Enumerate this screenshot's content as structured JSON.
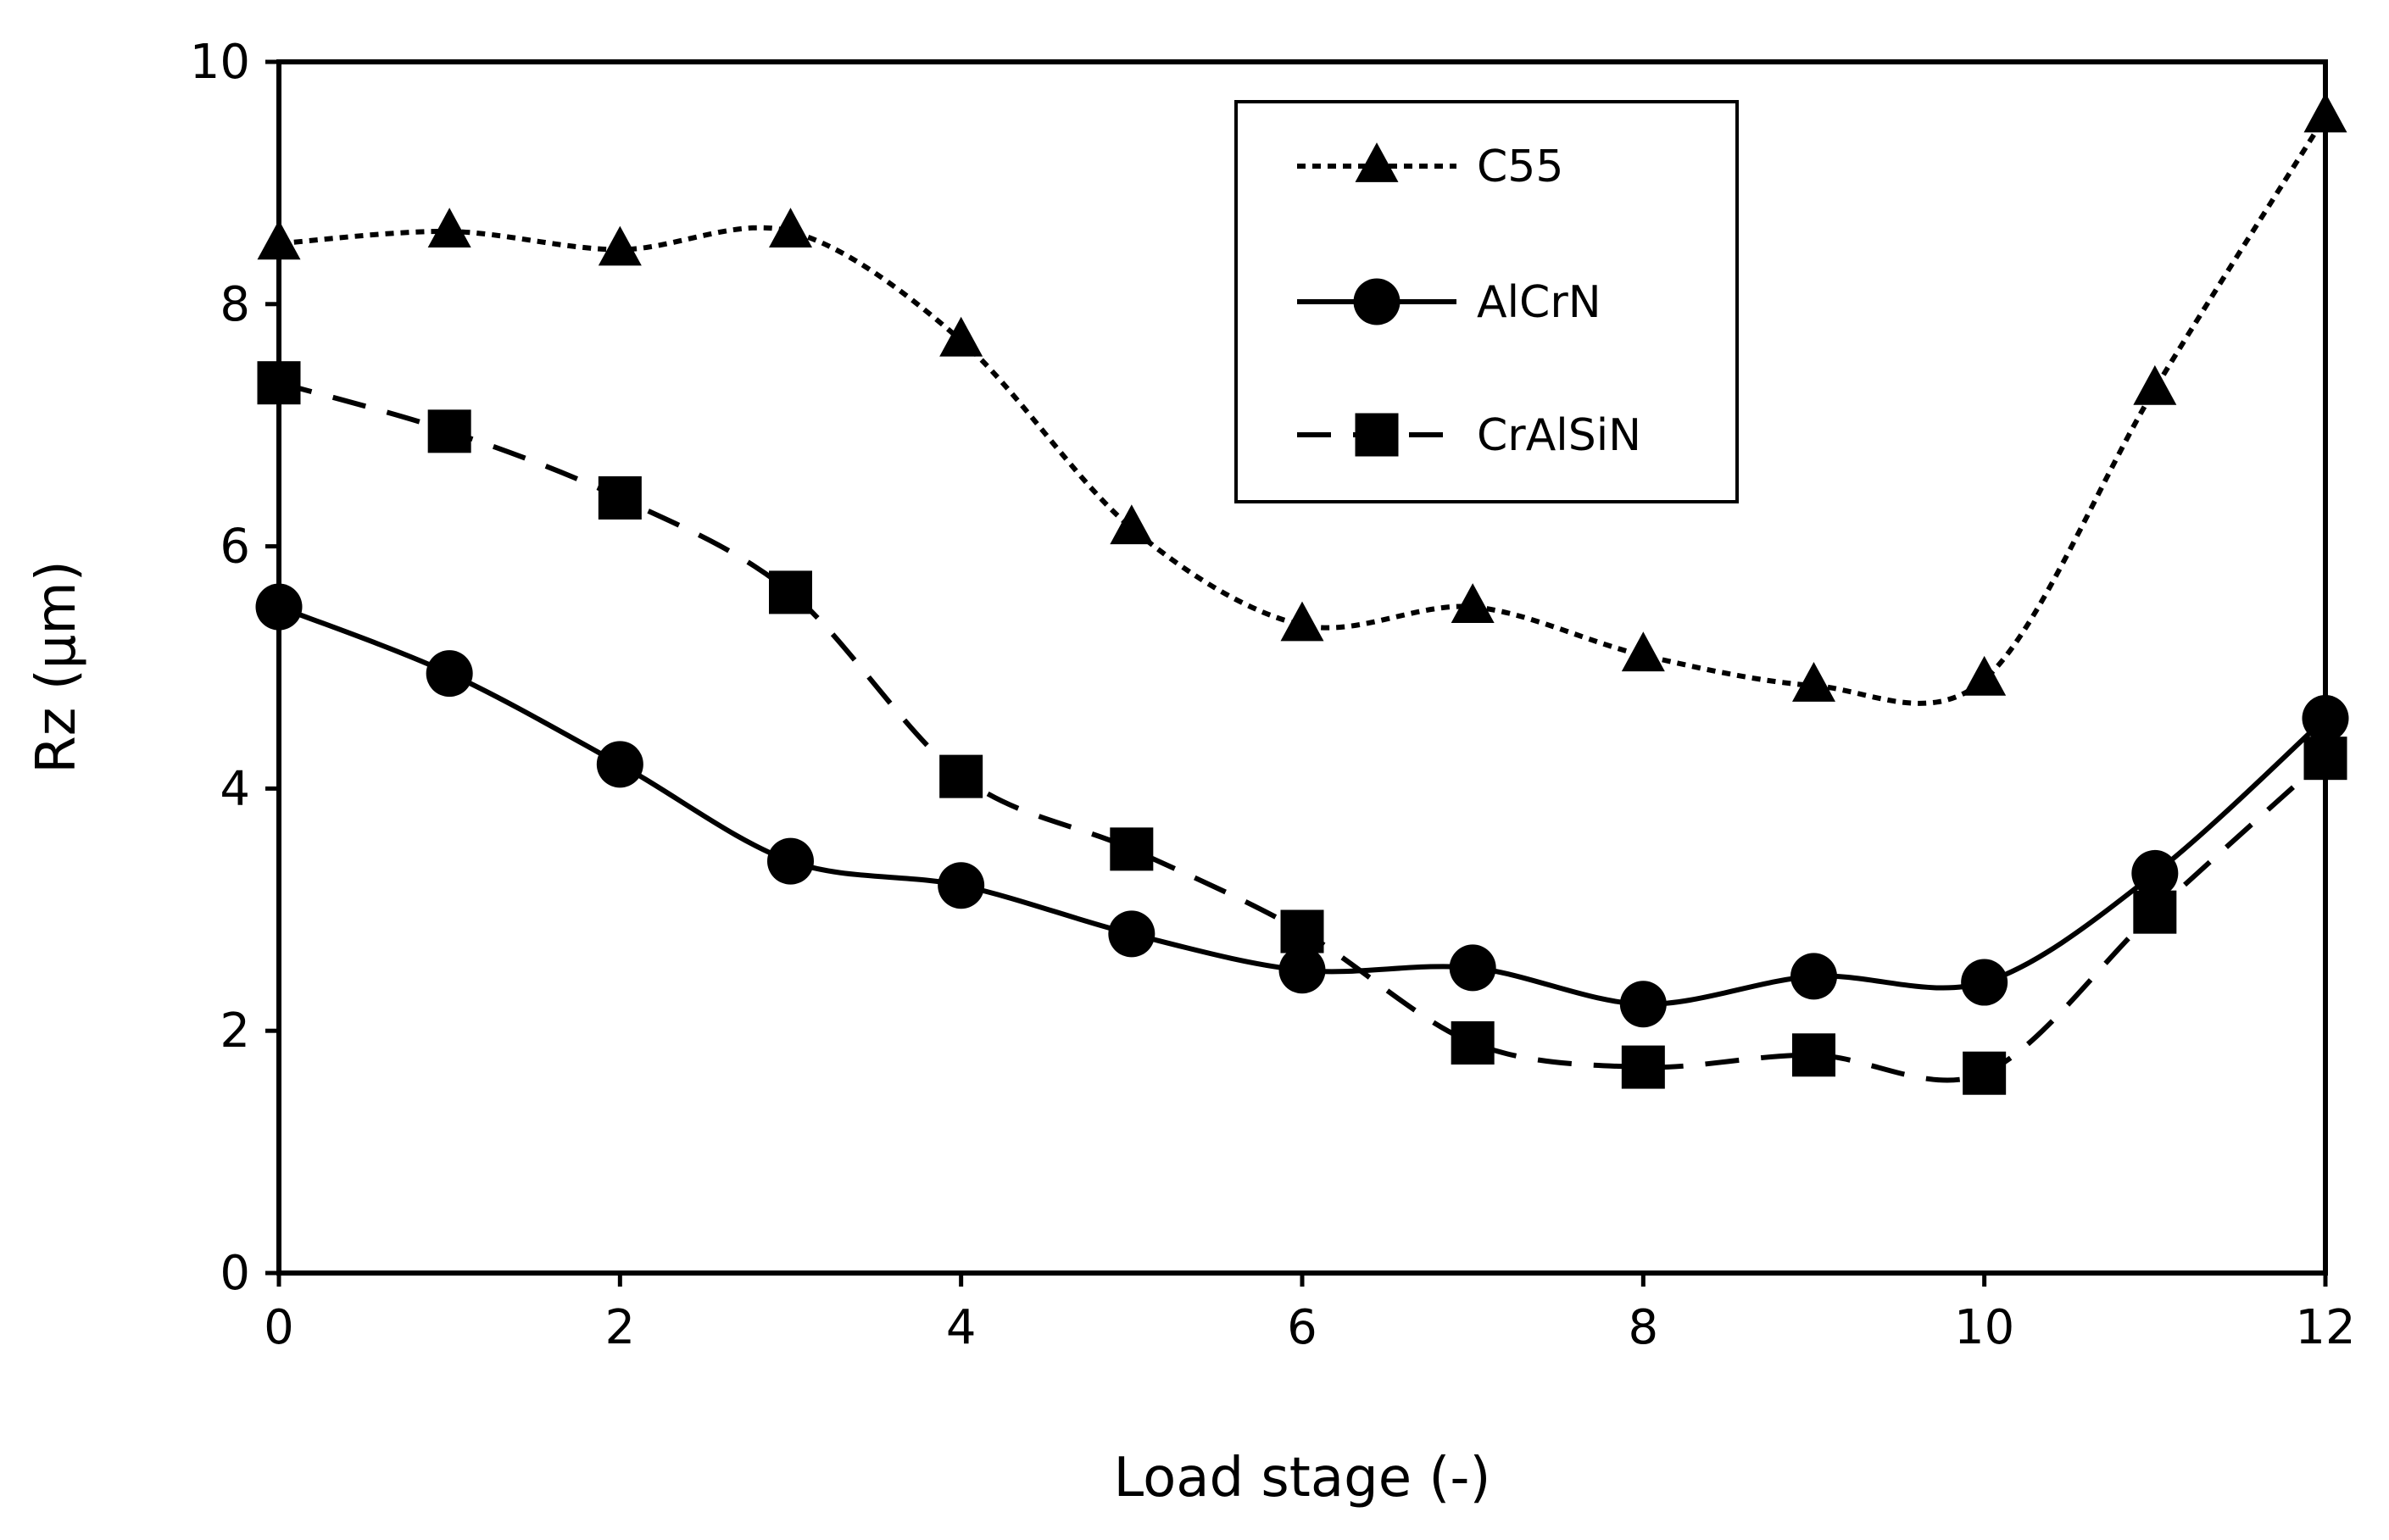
{
  "chart_data": {
    "type": "line",
    "title": "",
    "xlabel": "Load stage (-)",
    "ylabel": "Rz  (µm)",
    "xlim": [
      0,
      12
    ],
    "ylim": [
      0,
      10
    ],
    "xticks": [
      0,
      2,
      4,
      6,
      8,
      10,
      12
    ],
    "yticks": [
      0,
      2,
      4,
      6,
      8,
      10
    ],
    "xtick_labels": [
      "0",
      "2",
      "4",
      "6",
      "8",
      "10",
      "12"
    ],
    "ytick_labels": [
      "0",
      "2",
      "4",
      "6",
      "8",
      "10"
    ],
    "grid": false,
    "legend_position": "top-center",
    "series": [
      {
        "name": "C55",
        "marker": "triangle",
        "line_style": "dotted",
        "color": "#000000",
        "x": [
          0,
          1,
          2,
          3,
          4,
          5,
          6,
          7,
          8,
          9,
          10,
          11,
          12
        ],
        "values": [
          8.5,
          8.6,
          8.45,
          8.6,
          7.7,
          6.15,
          5.35,
          5.5,
          5.1,
          4.85,
          4.9,
          7.3,
          9.55
        ]
      },
      {
        "name": "AlCrN",
        "marker": "circle",
        "line_style": "solid",
        "color": "#000000",
        "x": [
          0,
          1,
          2,
          3,
          4,
          5,
          6,
          7,
          8,
          9,
          10,
          11,
          12
        ],
        "values": [
          5.5,
          4.95,
          4.2,
          3.4,
          3.2,
          2.8,
          2.5,
          2.52,
          2.22,
          2.45,
          2.4,
          3.3,
          4.58
        ]
      },
      {
        "name": "CrAlSiN",
        "marker": "square",
        "line_style": "dashed",
        "color": "#000000",
        "x": [
          0,
          1,
          2,
          3,
          4,
          5,
          6,
          7,
          8,
          9,
          10,
          11,
          12
        ],
        "values": [
          7.35,
          6.95,
          6.4,
          5.62,
          4.1,
          3.5,
          2.82,
          1.9,
          1.7,
          1.8,
          1.65,
          2.98,
          4.25
        ]
      }
    ]
  }
}
